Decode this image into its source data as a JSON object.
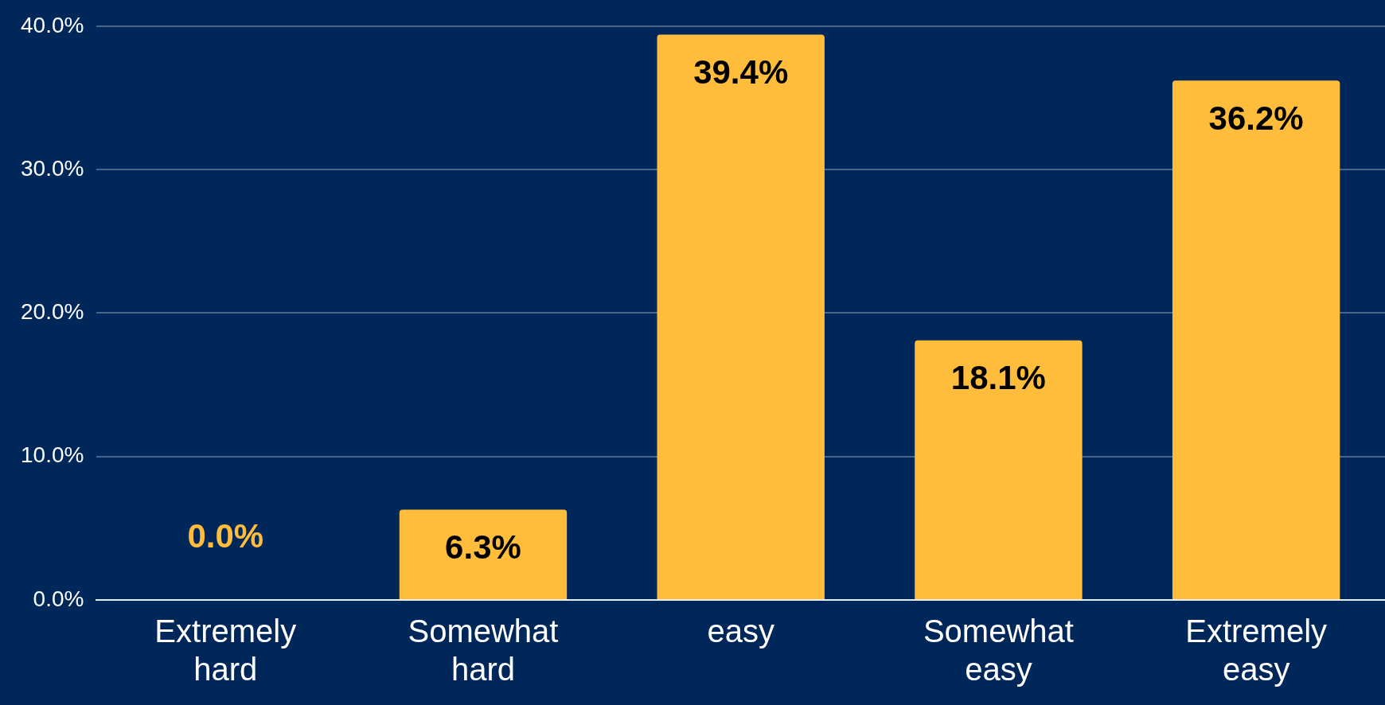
{
  "chart_data": {
    "type": "bar",
    "categories": [
      "Extremely hard",
      "Somewhat hard",
      "easy",
      "Somewhat easy",
      "Extremely easy"
    ],
    "values": [
      0.0,
      6.3,
      39.4,
      18.1,
      36.2
    ],
    "value_labels": [
      "0.0%",
      "6.3%",
      "39.4%",
      "18.1%",
      "36.2%"
    ],
    "color": "#ffbd3b",
    "ylim": [
      0,
      40
    ],
    "yticks": [
      {
        "value": 0,
        "label": "0.0%"
      },
      {
        "value": 10,
        "label": "10.0%"
      },
      {
        "value": 20,
        "label": "20.0%"
      },
      {
        "value": 30,
        "label": "30.0%"
      },
      {
        "value": 40,
        "label": "40.0%"
      }
    ],
    "grid": "y"
  }
}
